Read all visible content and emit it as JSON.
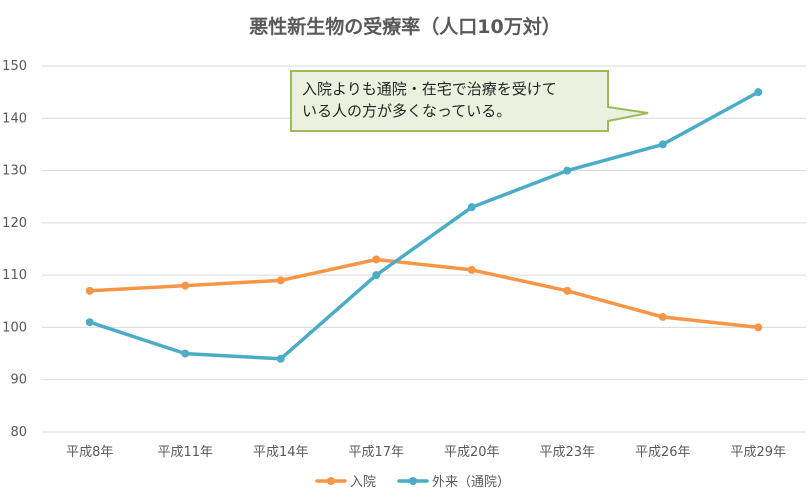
{
  "chart_data": {
    "type": "line",
    "title": "悪性新生物の受療率（人口10万対）",
    "categories": [
      "平成8年",
      "平成11年",
      "平成14年",
      "平成17年",
      "平成20年",
      "平成23年",
      "平成26年",
      "平成29年"
    ],
    "series": [
      {
        "name": "入院",
        "color": "#F79646",
        "values": [
          107,
          108,
          109,
          113,
          111,
          107,
          102,
          100
        ]
      },
      {
        "name": "外来（通院）",
        "color": "#4BACC6",
        "values": [
          101,
          95,
          94,
          110,
          123,
          130,
          135,
          145
        ]
      }
    ],
    "ylim": [
      80,
      150
    ],
    "yticks": [
      80,
      90,
      100,
      110,
      120,
      130,
      140,
      150
    ],
    "grid": true,
    "legend": "bottom",
    "annotation": {
      "lines": [
        "入院よりも通院・在宅で治療を受けて",
        "いる人の方が多くなっている。"
      ],
      "fill": "#EBF1DE",
      "border": "#9BBB59"
    }
  }
}
